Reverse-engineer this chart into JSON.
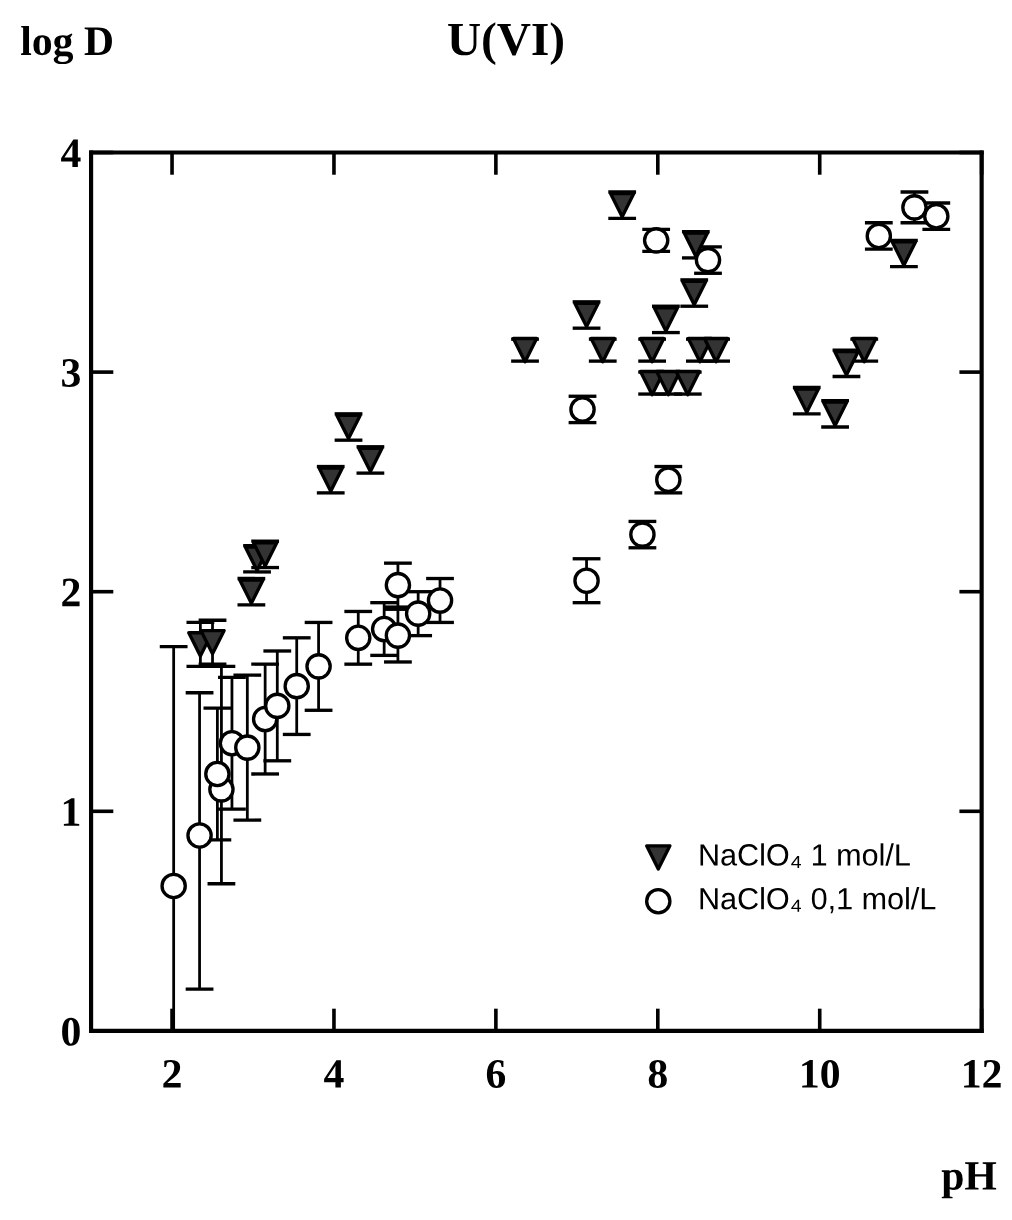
{
  "chart_data": {
    "type": "scatter",
    "title": "U(VI)",
    "xlabel": "pH",
    "ylabel": "log D",
    "xlim": [
      1,
      12
    ],
    "ylim": [
      0,
      4
    ],
    "xticks": [
      2,
      4,
      6,
      8,
      10,
      12
    ],
    "yticks": [
      0,
      1,
      2,
      3,
      4
    ],
    "grid": false,
    "legend": "bottom right",
    "series": [
      {
        "name": "NaClO₄ 1 mol/L",
        "color": "#333333",
        "marker": "triangle",
        "x": [
          2.35,
          2.5,
          2.98,
          3.05,
          3.15,
          3.96,
          4.18,
          4.45,
          6.36,
          7.56,
          7.12,
          7.32,
          8.47,
          8.45,
          8.1,
          7.93,
          8.52,
          8.72,
          7.93,
          8.13,
          8.37,
          10.55,
          10.33,
          9.84,
          10.19,
          11.04
        ],
        "values": [
          1.76,
          1.77,
          2.0,
          2.15,
          2.17,
          2.51,
          2.75,
          2.6,
          3.1,
          3.76,
          3.26,
          3.1,
          3.58,
          3.36,
          3.24,
          3.1,
          3.1,
          3.1,
          2.95,
          2.95,
          2.95,
          3.1,
          3.04,
          2.87,
          2.81,
          3.54
        ],
        "errors": [
          0.1,
          0.1,
          0.06,
          0.06,
          0.06,
          0.06,
          0.06,
          0.06,
          0.05,
          0.06,
          0.06,
          0.05,
          0.06,
          0.06,
          0.06,
          0.05,
          0.05,
          0.05,
          0.05,
          0.05,
          0.05,
          0.05,
          0.06,
          0.06,
          0.06,
          0.06
        ]
      },
      {
        "name": "NaClO₄ 0,1 mol/L",
        "color": "#000000",
        "marker": "circle",
        "x": [
          2.02,
          2.34,
          2.61,
          2.56,
          2.74,
          2.93,
          3.15,
          3.3,
          3.54,
          3.81,
          4.3,
          4.62,
          4.79,
          4.79,
          5.04,
          5.31,
          7.07,
          7.12,
          7.81,
          8.13,
          7.98,
          8.62,
          10.73,
          11.17,
          11.44
        ],
        "values": [
          0.66,
          0.89,
          1.1,
          1.17,
          1.31,
          1.29,
          1.42,
          1.48,
          1.57,
          1.66,
          1.79,
          1.83,
          1.8,
          2.03,
          1.9,
          1.96,
          2.83,
          2.05,
          2.26,
          2.51,
          3.6,
          3.51,
          3.62,
          3.75,
          3.71
        ],
        "errors": [
          [
            0,
            1.75
          ],
          [
            0.19,
            1.54
          ],
          [
            0.67,
            1.66
          ],
          0.3,
          0.3,
          [
            0.96,
            1.62
          ],
          0.25,
          0.25,
          0.22,
          0.2,
          0.12,
          0.12,
          0.12,
          0.1,
          0.1,
          0.1,
          0.06,
          0.1,
          0.06,
          0.06,
          0.05,
          0.06,
          0.06,
          0.07,
          0.06
        ]
      }
    ]
  }
}
